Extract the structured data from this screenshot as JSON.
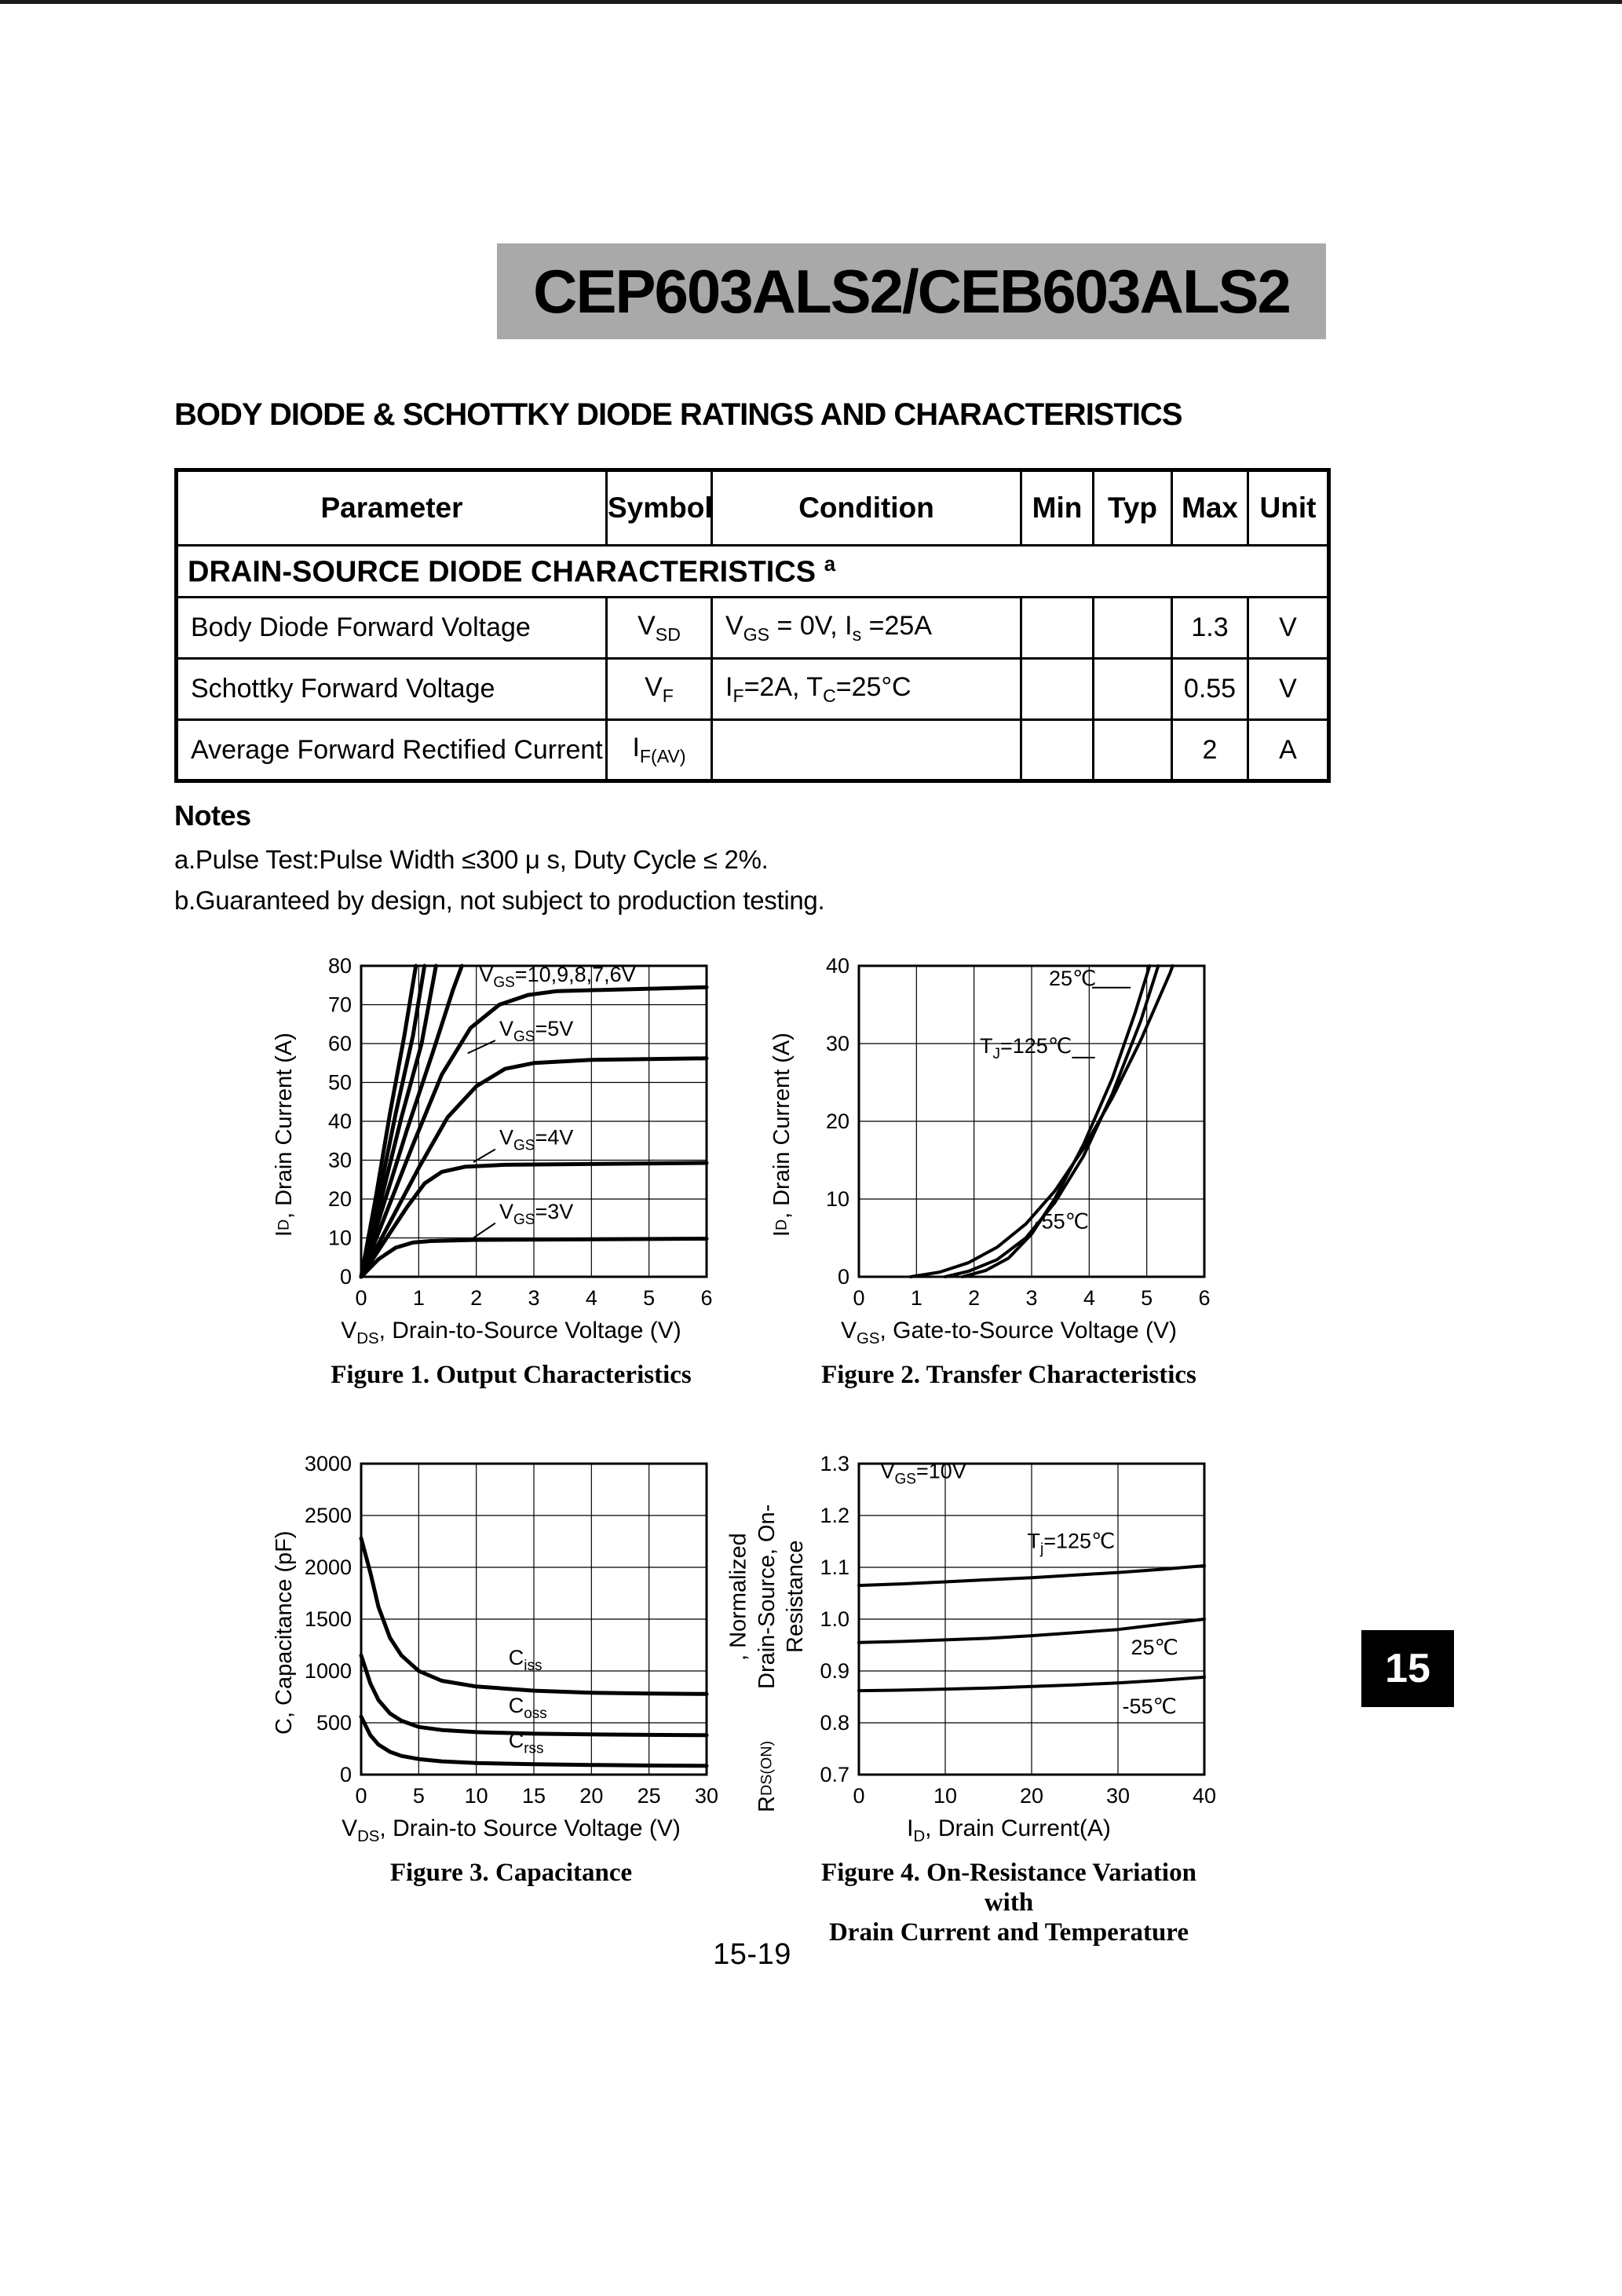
{
  "page": {
    "banner_title": "CEP603ALS2/CEB603ALS2",
    "section_heading": "BODY DIODE & SCHOTTKY DIODE RATINGS AND CHARACTERISTICS",
    "page_number": "15-19",
    "side_tab": "15"
  },
  "table": {
    "headers": [
      "Parameter",
      "Symbol",
      "Condition",
      "Min",
      "Typ",
      "Max",
      "Unit"
    ],
    "section_row": "DRAIN-SOURCE DIODE CHARACTERISTICS ^a^",
    "rows": [
      {
        "parameter": "Body Diode Forward Voltage",
        "symbol": "V~SD~",
        "condition": "V~GS~ = 0V, I~s~ =25A",
        "min": "",
        "typ": "",
        "max": "1.3",
        "unit": "V"
      },
      {
        "parameter": "Schottky Forward Voltage",
        "symbol": "V~F~",
        "condition": "I~F~=2A, T~C~=25°C",
        "min": "",
        "typ": "",
        "max": "0.55",
        "unit": "V"
      },
      {
        "parameter": "Average Forward Rectified Current",
        "symbol": "I~F(AV)~",
        "condition": "",
        "min": "",
        "typ": "",
        "max": "2",
        "unit": "A"
      }
    ]
  },
  "notes": {
    "title": "Notes",
    "lines": [
      "a.Pulse Test:Pulse Width ≤300 μ s, Duty Cycle ≤ 2%.",
      "b.Guaranteed by design, not subject to production testing."
    ]
  },
  "chart_data": [
    {
      "id": "fig1",
      "type": "line",
      "caption": "Figure 1. Output Characteristics",
      "xlabel": "V~DS~, Drain-to-Source Voltage (V)",
      "ylabel": "I~D~, Drain Current (A)",
      "xlim": [
        0,
        6
      ],
      "ylim": [
        0,
        80
      ],
      "xticks": [
        "0",
        "1",
        "2",
        "3",
        "4",
        "5",
        "6"
      ],
      "yticks": [
        "0",
        "10",
        "20",
        "30",
        "40",
        "50",
        "60",
        "70",
        "80"
      ],
      "grid": true,
      "series": [
        {
          "name": "VGS=10V",
          "width": 5,
          "points": [
            [
              0,
              0
            ],
            [
              0.25,
              20
            ],
            [
              0.5,
              42
            ],
            [
              0.75,
              62
            ],
            [
              0.95,
              80
            ]
          ]
        },
        {
          "name": "VGS=9V",
          "width": 5,
          "points": [
            [
              0,
              0
            ],
            [
              0.3,
              20
            ],
            [
              0.6,
              42
            ],
            [
              0.9,
              62
            ],
            [
              1.1,
              80
            ]
          ]
        },
        {
          "name": "VGS=8V",
          "width": 5,
          "points": [
            [
              0,
              0
            ],
            [
              0.35,
              20
            ],
            [
              0.7,
              41
            ],
            [
              1.05,
              60
            ],
            [
              1.3,
              80
            ]
          ]
        },
        {
          "name": "VGS=7V",
          "width": 5,
          "points": [
            [
              0,
              0
            ],
            [
              0.4,
              19
            ],
            [
              0.8,
              38
            ],
            [
              1.25,
              58
            ],
            [
              1.6,
              74
            ],
            [
              1.75,
              80
            ]
          ]
        },
        {
          "name": "VGS=6V",
          "width": 5,
          "points": [
            [
              0,
              0
            ],
            [
              0.45,
              17
            ],
            [
              0.9,
              34
            ],
            [
              1.4,
              52
            ],
            [
              1.9,
              64
            ],
            [
              2.4,
              70
            ],
            [
              2.9,
              72.5
            ],
            [
              3.4,
              73.5
            ],
            [
              6,
              74.5
            ]
          ]
        },
        {
          "name": "VGS=5V",
          "width": 5,
          "points": [
            [
              0,
              0
            ],
            [
              0.5,
              14
            ],
            [
              1.0,
              28
            ],
            [
              1.5,
              41
            ],
            [
              2.0,
              49
            ],
            [
              2.5,
              53.5
            ],
            [
              3.0,
              55
            ],
            [
              4,
              55.8
            ],
            [
              6,
              56.2
            ]
          ]
        },
        {
          "name": "VGS=4V",
          "width": 5,
          "points": [
            [
              0,
              0
            ],
            [
              0.4,
              9
            ],
            [
              0.8,
              18
            ],
            [
              1.1,
              24
            ],
            [
              1.4,
              27
            ],
            [
              1.8,
              28.3
            ],
            [
              2.5,
              28.8
            ],
            [
              6,
              29.3
            ]
          ]
        },
        {
          "name": "VGS=3V",
          "width": 5,
          "points": [
            [
              0,
              0
            ],
            [
              0.3,
              4.5
            ],
            [
              0.6,
              7.5
            ],
            [
              0.9,
              8.8
            ],
            [
              1.2,
              9.2
            ],
            [
              2,
              9.5
            ],
            [
              6,
              9.8
            ]
          ]
        }
      ],
      "annotations": [
        {
          "text": "V~GS~=10,9,8,7,6V",
          "x": 2.05,
          "y": 76
        },
        {
          "text": "V~GS~=5V",
          "x": 2.4,
          "y": 62,
          "line": [
            [
              1.85,
              57.5
            ],
            [
              2.33,
              60.8
            ]
          ]
        },
        {
          "text": "V~GS~=4V",
          "x": 2.4,
          "y": 34,
          "line": [
            [
              1.95,
              29.5
            ],
            [
              2.33,
              32.8
            ]
          ]
        },
        {
          "text": "V~GS~=3V",
          "x": 2.4,
          "y": 15,
          "line": [
            [
              1.95,
              10
            ],
            [
              2.33,
              13.8
            ]
          ]
        }
      ]
    },
    {
      "id": "fig2",
      "type": "line",
      "caption": "Figure 2. Transfer Characteristics",
      "xlabel": "V~GS~, Gate-to-Source Voltage (V)",
      "ylabel": "I~D~, Drain Current (A)",
      "xlim": [
        0,
        6
      ],
      "ylim": [
        0,
        40
      ],
      "xticks": [
        "0",
        "1",
        "2",
        "3",
        "4",
        "5",
        "6"
      ],
      "yticks": [
        "0",
        "10",
        "20",
        "30",
        "40"
      ],
      "grid": true,
      "series": [
        {
          "name": "TJ=125C",
          "width": 4,
          "points": [
            [
              0.9,
              0
            ],
            [
              1.4,
              0.6
            ],
            [
              1.9,
              1.8
            ],
            [
              2.4,
              3.8
            ],
            [
              2.9,
              6.8
            ],
            [
              3.4,
              11
            ],
            [
              3.9,
              16.5
            ],
            [
              4.4,
              23
            ],
            [
              4.9,
              30.5
            ],
            [
              5.4,
              39
            ],
            [
              5.45,
              40
            ]
          ]
        },
        {
          "name": "TJ=25C",
          "width": 4,
          "points": [
            [
              1.5,
              0
            ],
            [
              1.9,
              0.7
            ],
            [
              2.4,
              2.2
            ],
            [
              2.9,
              5
            ],
            [
              3.4,
              9.5
            ],
            [
              3.9,
              15.5
            ],
            [
              4.4,
              23.5
            ],
            [
              4.9,
              33
            ],
            [
              5.2,
              40
            ]
          ]
        },
        {
          "name": "TJ=-55C",
          "width": 4,
          "points": [
            [
              1.8,
              0
            ],
            [
              2.2,
              0.8
            ],
            [
              2.6,
              2.4
            ],
            [
              3.0,
              5.5
            ],
            [
              3.4,
              10
            ],
            [
              3.9,
              17
            ],
            [
              4.4,
              25.5
            ],
            [
              4.8,
              34
            ],
            [
              5.05,
              40
            ]
          ]
        }
      ],
      "annotations": [
        {
          "text": "25℃",
          "x": 3.3,
          "y": 37.5,
          "line": [
            [
              4.05,
              37.2
            ],
            [
              4.72,
              37.2
            ]
          ]
        },
        {
          "text": "T~J~=125℃",
          "x": 2.1,
          "y": 28.8,
          "line": [
            [
              3.7,
              28.2
            ],
            [
              4.1,
              28.2
            ]
          ]
        },
        {
          "text": "-55℃",
          "x": 3.05,
          "y": 6.2
        }
      ]
    },
    {
      "id": "fig3",
      "type": "line",
      "caption": "Figure 3. Capacitance",
      "xlabel": "V~DS~, Drain-to Source Voltage (V)",
      "ylabel": "C, Capacitance (pF)",
      "xlim": [
        0,
        30
      ],
      "ylim": [
        0,
        3000
      ],
      "xticks": [
        "0",
        "5",
        "10",
        "15",
        "20",
        "25",
        "30"
      ],
      "yticks": [
        "0",
        "500",
        "1000",
        "1500",
        "2000",
        "2500",
        "3000"
      ],
      "grid": true,
      "series": [
        {
          "name": "Ciss",
          "width": 5,
          "points": [
            [
              0,
              2280
            ],
            [
              0.8,
              1950
            ],
            [
              1.5,
              1620
            ],
            [
              2.5,
              1320
            ],
            [
              3.5,
              1150
            ],
            [
              5,
              1000
            ],
            [
              7,
              905
            ],
            [
              10,
              850
            ],
            [
              15,
              810
            ],
            [
              20,
              790
            ],
            [
              25,
              782
            ],
            [
              30,
              778
            ]
          ]
        },
        {
          "name": "Coss",
          "width": 5,
          "points": [
            [
              0,
              1150
            ],
            [
              0.8,
              880
            ],
            [
              1.5,
              720
            ],
            [
              2.5,
              590
            ],
            [
              3.5,
              520
            ],
            [
              5,
              460
            ],
            [
              7,
              430
            ],
            [
              10,
              410
            ],
            [
              15,
              395
            ],
            [
              20,
              388
            ],
            [
              25,
              383
            ],
            [
              30,
              380
            ]
          ]
        },
        {
          "name": "Crss",
          "width": 5,
          "points": [
            [
              0,
              560
            ],
            [
              0.8,
              380
            ],
            [
              1.5,
              290
            ],
            [
              2.5,
              220
            ],
            [
              3.5,
              180
            ],
            [
              5,
              150
            ],
            [
              7,
              128
            ],
            [
              10,
              112
            ],
            [
              15,
              100
            ],
            [
              20,
              93
            ],
            [
              25,
              88
            ],
            [
              30,
              85
            ]
          ]
        }
      ],
      "annotations": [
        {
          "text": "C~iss~",
          "x": 12.8,
          "y": 1060
        },
        {
          "text": "C~oss~",
          "x": 12.8,
          "y": 600
        },
        {
          "text": "C~rss~",
          "x": 12.8,
          "y": 260
        }
      ]
    },
    {
      "id": "fig4",
      "type": "line",
      "caption": "Figure 4. On-Resistance Variation with\nDrain Current and Temperature",
      "xlabel": "I~D~, Drain Current(A)",
      "ylabel": "R~DS(ON)~, Normalized\nDrain-Source, On-Resistance",
      "xlim": [
        0,
        40
      ],
      "ylim": [
        0.7,
        1.3
      ],
      "xticks": [
        "0",
        "10",
        "20",
        "30",
        "40"
      ],
      "yticks": [
        "0.7",
        "0.8",
        "0.9",
        "1.0",
        "1.1",
        "1.2",
        "1.3"
      ],
      "grid": true,
      "series": [
        {
          "name": "Tj=125C",
          "width": 4,
          "points": [
            [
              0,
              1.065
            ],
            [
              5,
              1.068
            ],
            [
              10,
              1.072
            ],
            [
              15,
              1.076
            ],
            [
              20,
              1.08
            ],
            [
              25,
              1.085
            ],
            [
              30,
              1.09
            ],
            [
              35,
              1.096
            ],
            [
              40,
              1.103
            ]
          ]
        },
        {
          "name": "Tj=25C",
          "width": 4,
          "points": [
            [
              0,
              0.955
            ],
            [
              5,
              0.957
            ],
            [
              10,
              0.96
            ],
            [
              15,
              0.963
            ],
            [
              20,
              0.968
            ],
            [
              25,
              0.974
            ],
            [
              30,
              0.98
            ],
            [
              35,
              0.99
            ],
            [
              40,
              1.0
            ]
          ]
        },
        {
          "name": "Tj=-55C",
          "width": 4,
          "points": [
            [
              0,
              0.862
            ],
            [
              5,
              0.863
            ],
            [
              10,
              0.865
            ],
            [
              15,
              0.867
            ],
            [
              20,
              0.87
            ],
            [
              25,
              0.873
            ],
            [
              30,
              0.877
            ],
            [
              35,
              0.882
            ],
            [
              40,
              0.888
            ]
          ]
        }
      ],
      "annotations": [
        {
          "text": "V~GS~=10V",
          "x": 2.5,
          "y": 1.272
        },
        {
          "text": "T~j~=125℃",
          "x": 19.5,
          "y": 1.137
        },
        {
          "text": "25℃",
          "x": 31.5,
          "y": 0.932
        },
        {
          "text": "-55℃",
          "x": 30.5,
          "y": 0.818
        }
      ]
    }
  ]
}
